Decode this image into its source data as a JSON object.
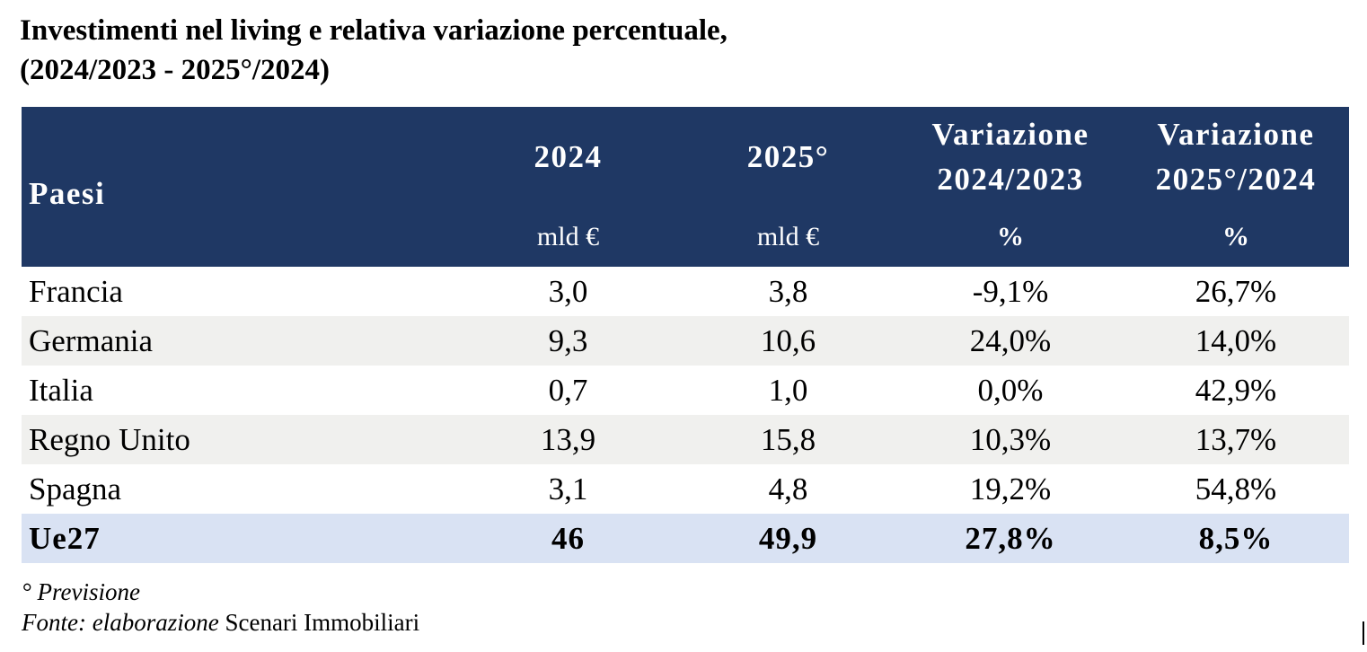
{
  "title": {
    "line1": "Investimenti nel living e relativa variazione percentuale,",
    "line2": "(2024/2023 - 2025°/2024)"
  },
  "table": {
    "headers": {
      "country": "Paesi",
      "col_2024": "2024",
      "col_2025": "2025°",
      "var1_line1": "Variazione",
      "var1_line2": "2024/2023",
      "var2_line1": "Variazione",
      "var2_line2": "2025°/2024"
    },
    "units": {
      "col_2024": "mld €",
      "col_2025": "mld €",
      "var1": "%",
      "var2": "%"
    },
    "rows": [
      {
        "country": "Francia",
        "v2024": "3,0",
        "v2025": "3,8",
        "var1": "-9,1%",
        "var2": "26,7%"
      },
      {
        "country": "Germania",
        "v2024": "9,3",
        "v2025": "10,6",
        "var1": "24,0%",
        "var2": "14,0%"
      },
      {
        "country": "Italia",
        "v2024": "0,7",
        "v2025": "1,0",
        "var1": "0,0%",
        "var2": "42,9%"
      },
      {
        "country": "Regno Unito",
        "v2024": "13,9",
        "v2025": "15,8",
        "var1": "10,3%",
        "var2": "13,7%"
      },
      {
        "country": "Spagna",
        "v2024": "3,1",
        "v2025": "4,8",
        "var1": "19,2%",
        "var2": "54,8%"
      }
    ],
    "total": {
      "country": "Ue27",
      "v2024": "46",
      "v2025": "49,9",
      "var1": "27,8%",
      "var2": "8,5%"
    }
  },
  "notes": {
    "forecast": "° Previsione",
    "source_prefix": "Fonte: elaborazione",
    "source_name": "Scenari Immobiliari"
  },
  "colors": {
    "header_bg": "#1f3864",
    "alt_row_bg": "#f0f0ee",
    "total_row_bg": "#d9e2f3"
  }
}
